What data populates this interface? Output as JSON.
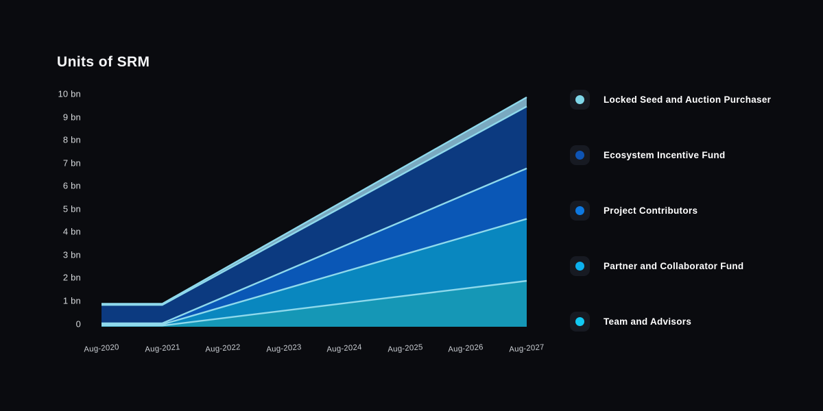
{
  "title": "Units of SRM",
  "colors": {
    "background": "#0a0b0f",
    "title_text": "#f5f6f8",
    "y_tick_text": "#d5d8db",
    "x_tick_text": "#c7cbd0",
    "legend_text": "#ffffff",
    "legend_tile_bg": "#171a22",
    "boundary_line": "#8fd9ec"
  },
  "chart_data": {
    "type": "area",
    "stacked": true,
    "title": "Units of SRM",
    "unit": "bn",
    "ylim": [
      0,
      10
    ],
    "grid": false,
    "x_labels": [
      "Aug-2020",
      "Aug-2021",
      "Aug-2022",
      "Aug-2023",
      "Aug-2024",
      "Aug-2025",
      "Aug-2026",
      "Aug-2027"
    ],
    "y_ticks": [
      "10 bn",
      "9 bn",
      "8 bn",
      "7 bn",
      "6 bn",
      "5 bn",
      "4 bn",
      "3 bn",
      "2 bn",
      "1 bn",
      "0"
    ],
    "series_bottom_to_top": [
      {
        "name": "Team and Advisors",
        "fill": "#1597b6",
        "legend_dot": "#12c9f2",
        "values": [
          0.05,
          0.05,
          0.375,
          0.7,
          1.025,
          1.35,
          1.675,
          2.0
        ]
      },
      {
        "name": "Partner and Collaborator Fund",
        "fill": "#0987bf",
        "legend_dot": "#0cb0ee",
        "values": [
          0.05,
          0.05,
          0.492,
          0.933,
          1.375,
          1.817,
          2.258,
          2.7
        ]
      },
      {
        "name": "Project Contributors",
        "fill": "#0a57b6",
        "legend_dot": "#0d78e0",
        "values": [
          0.05,
          0.05,
          0.408,
          0.767,
          1.125,
          1.483,
          1.842,
          2.2
        ]
      },
      {
        "name": "Ecosystem Incentive Fund",
        "fill": "#0c3a80",
        "legend_dot": "#0e54b4",
        "values": [
          0.8,
          0.8,
          1.117,
          1.433,
          1.75,
          2.067,
          2.383,
          2.7
        ]
      },
      {
        "name": "Locked Seed and Auction Purchaser",
        "fill": "#7aa9c0",
        "legend_dot": "#7fd6e8",
        "values": [
          0.05,
          0.05,
          0.108,
          0.167,
          0.225,
          0.283,
          0.342,
          0.4
        ]
      }
    ],
    "legend": {
      "position": "right",
      "order_top_to_bottom": [
        "Locked Seed and Auction Purchaser",
        "Ecosystem Incentive Fund",
        "Project Contributors",
        "Partner and Collaborator Fund",
        "Team and Advisors"
      ]
    }
  }
}
